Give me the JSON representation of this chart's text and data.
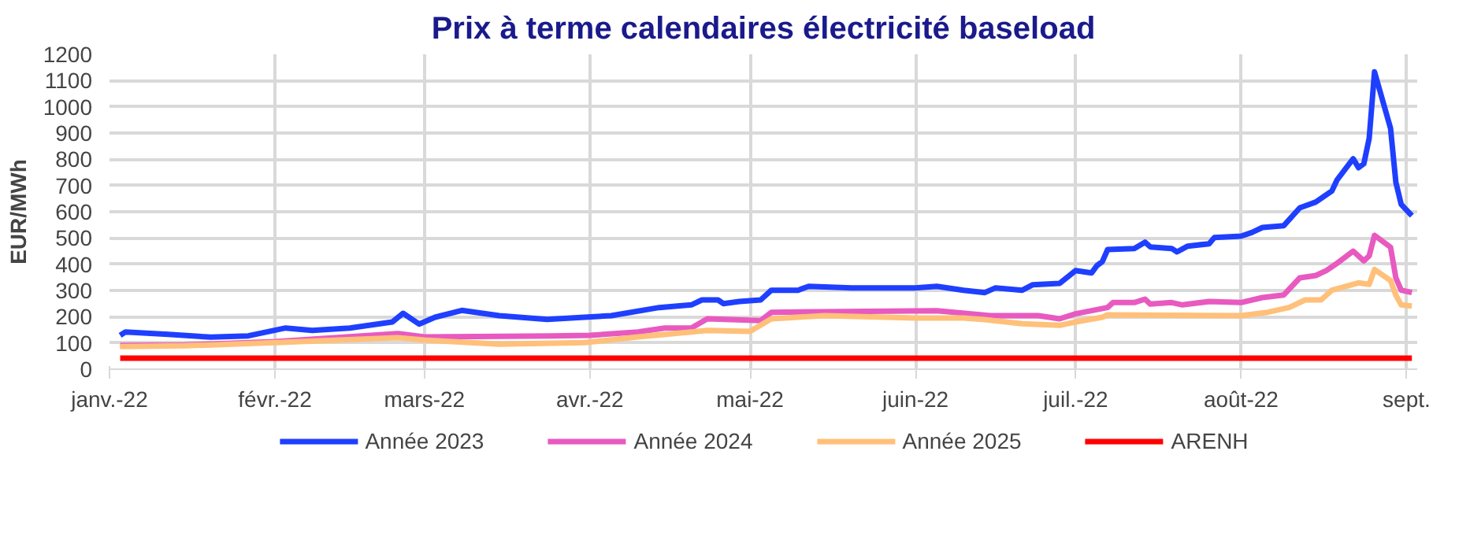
{
  "chart_data": {
    "type": "line",
    "title": "Prix à terme calendaires électricité baseload",
    "ylabel": "EUR/MWh",
    "xlim": [
      "2022-01-01",
      "2022-09-03"
    ],
    "xticks": [
      {
        "value": "2022-01-01",
        "label": "janv.-22"
      },
      {
        "value": "2022-02-01",
        "label": "févr.-22"
      },
      {
        "value": "2022-03-01",
        "label": "mars-22"
      },
      {
        "value": "2022-04-01",
        "label": "avr.-22"
      },
      {
        "value": "2022-05-01",
        "label": "mai-22"
      },
      {
        "value": "2022-06-01",
        "label": "juin-22"
      },
      {
        "value": "2022-07-01",
        "label": "juil.-22"
      },
      {
        "value": "2022-08-01",
        "label": "août-22"
      },
      {
        "value": "2022-09-01",
        "label": "sept."
      }
    ],
    "ylim": [
      0,
      1200
    ],
    "yticks": [
      0,
      100,
      200,
      300,
      400,
      500,
      600,
      700,
      800,
      900,
      1000,
      1100,
      1200
    ],
    "grid": true,
    "legend": "bottom",
    "line_style": "solid",
    "marker": "none",
    "series": [
      {
        "name": "Année 2023",
        "color": "#1f3fff",
        "x": [
          "2022-01-03",
          "2022-01-04",
          "2022-01-12",
          "2022-01-20",
          "2022-01-27",
          "2022-02-03",
          "2022-02-08",
          "2022-02-15",
          "2022-02-23",
          "2022-02-25",
          "2022-02-28",
          "2022-03-03",
          "2022-03-08",
          "2022-03-15",
          "2022-03-24",
          "2022-03-31",
          "2022-04-05",
          "2022-04-14",
          "2022-04-20",
          "2022-04-22",
          "2022-04-25",
          "2022-04-26",
          "2022-04-29",
          "2022-05-03",
          "2022-05-05",
          "2022-05-10",
          "2022-05-12",
          "2022-05-20",
          "2022-06-01",
          "2022-06-05",
          "2022-06-10",
          "2022-06-14",
          "2022-06-16",
          "2022-06-21",
          "2022-06-23",
          "2022-06-28",
          "2022-07-01",
          "2022-07-04",
          "2022-07-05",
          "2022-07-06",
          "2022-07-07",
          "2022-07-12",
          "2022-07-14",
          "2022-07-15",
          "2022-07-19",
          "2022-07-20",
          "2022-07-22",
          "2022-07-26",
          "2022-07-27",
          "2022-08-01",
          "2022-08-03",
          "2022-08-05",
          "2022-08-09",
          "2022-08-12",
          "2022-08-15",
          "2022-08-18",
          "2022-08-19",
          "2022-08-22",
          "2022-08-23",
          "2022-08-24",
          "2022-08-25",
          "2022-08-26",
          "2022-08-29",
          "2022-08-30",
          "2022-08-31",
          "2022-09-02"
        ],
        "values": [
          129,
          142,
          133,
          122,
          127,
          157,
          148,
          157,
          180,
          213,
          172,
          198,
          224,
          204,
          190,
          198,
          204,
          235,
          245,
          264,
          264,
          250,
          258,
          264,
          301,
          301,
          316,
          310,
          310,
          316,
          301,
          292,
          310,
          301,
          322,
          327,
          376,
          367,
          395,
          410,
          456,
          460,
          484,
          466,
          460,
          447,
          469,
          478,
          502,
          507,
          521,
          540,
          547,
          615,
          637,
          679,
          722,
          802,
          768,
          783,
          880,
          1133,
          918,
          712,
          628,
          585
        ]
      },
      {
        "name": "Année 2024",
        "color": "#e85ac0",
        "x": [
          "2022-01-03",
          "2022-01-15",
          "2022-02-01",
          "2022-02-24",
          "2022-03-01",
          "2022-03-25",
          "2022-04-01",
          "2022-04-10",
          "2022-04-15",
          "2022-04-20",
          "2022-04-23",
          "2022-05-03",
          "2022-05-05",
          "2022-06-05",
          "2022-06-15",
          "2022-06-24",
          "2022-06-28",
          "2022-07-01",
          "2022-07-07",
          "2022-07-08",
          "2022-07-12",
          "2022-07-14",
          "2022-07-15",
          "2022-07-19",
          "2022-07-21",
          "2022-07-26",
          "2022-08-01",
          "2022-08-05",
          "2022-08-09",
          "2022-08-12",
          "2022-08-15",
          "2022-08-17",
          "2022-08-19",
          "2022-08-22",
          "2022-08-24",
          "2022-08-25",
          "2022-08-26",
          "2022-08-29",
          "2022-08-30",
          "2022-08-31",
          "2022-09-02"
        ],
        "values": [
          91,
          92,
          105,
          136,
          123,
          127,
          129,
          142,
          157,
          157,
          192,
          185,
          217,
          223,
          204,
          204,
          192,
          211,
          235,
          254,
          254,
          267,
          248,
          254,
          245,
          258,
          254,
          273,
          283,
          348,
          357,
          376,
          404,
          450,
          413,
          432,
          510,
          465,
          348,
          301,
          292
        ]
      },
      {
        "name": "Année 2025",
        "color": "#ffc07a",
        "x": [
          "2022-01-03",
          "2022-01-15",
          "2022-02-01",
          "2022-02-24",
          "2022-03-01",
          "2022-03-15",
          "2022-03-31",
          "2022-04-10",
          "2022-04-20",
          "2022-04-23",
          "2022-05-01",
          "2022-05-05",
          "2022-05-15",
          "2022-06-01",
          "2022-06-10",
          "2022-06-14",
          "2022-06-21",
          "2022-06-28",
          "2022-07-01",
          "2022-07-06",
          "2022-07-07",
          "2022-08-01",
          "2022-08-06",
          "2022-08-10",
          "2022-08-13",
          "2022-08-16",
          "2022-08-18",
          "2022-08-23",
          "2022-08-25",
          "2022-08-26",
          "2022-08-29",
          "2022-08-30",
          "2022-08-31",
          "2022-09-02"
        ],
        "values": [
          86,
          89,
          101,
          120,
          111,
          95,
          101,
          123,
          142,
          148,
          144,
          192,
          204,
          195,
          195,
          189,
          173,
          167,
          180,
          198,
          207,
          204,
          217,
          235,
          264,
          264,
          301,
          329,
          323,
          380,
          338,
          282,
          245,
          241
        ]
      },
      {
        "name": "ARENH",
        "color": "#ff0000",
        "x": [
          "2022-01-03",
          "2022-09-02"
        ],
        "values": [
          42,
          42
        ]
      }
    ]
  }
}
